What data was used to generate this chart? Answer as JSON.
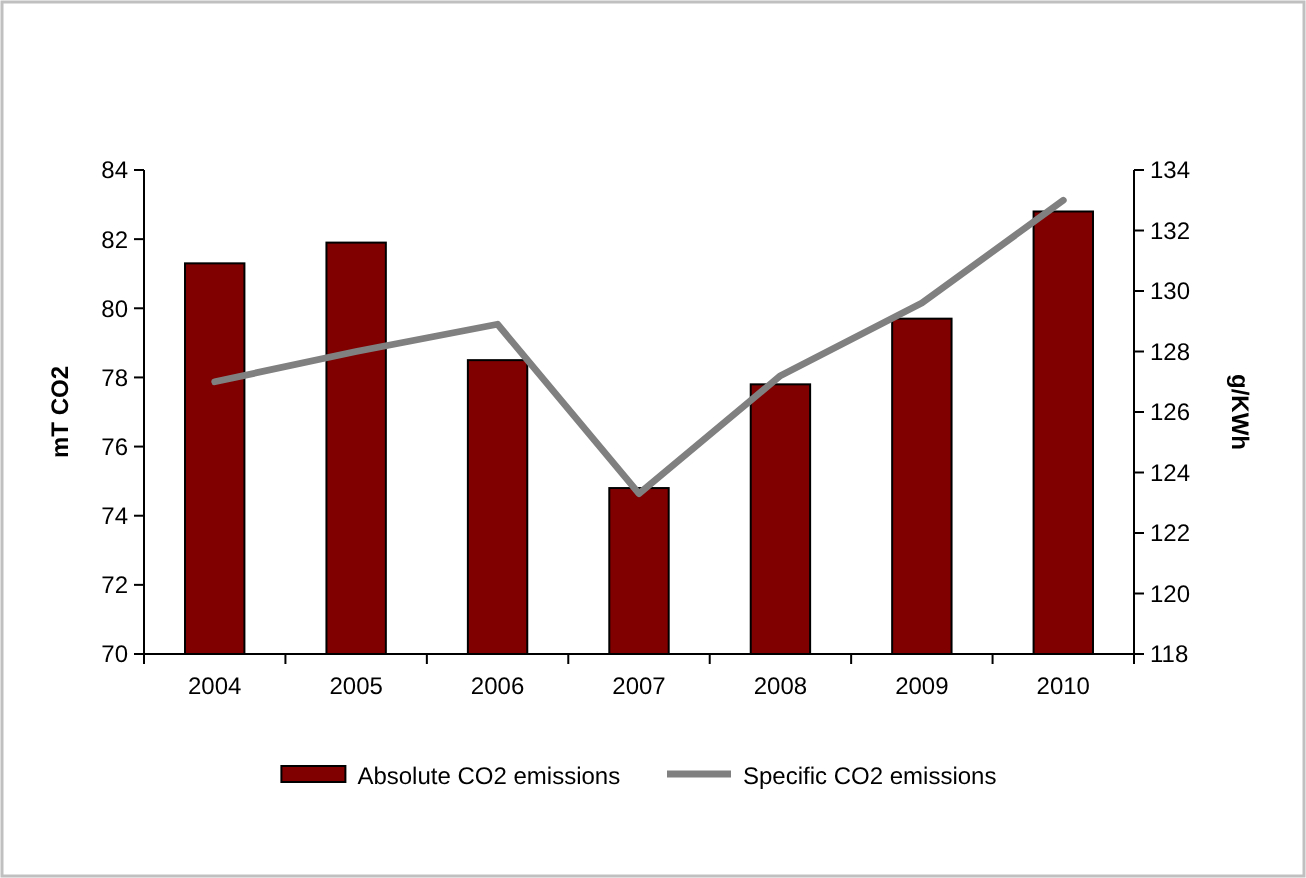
{
  "chart_data": {
    "type": "bar",
    "categories": [
      "2004",
      "2005",
      "2006",
      "2007",
      "2008",
      "2009",
      "2010"
    ],
    "series": [
      {
        "name": "Absolute CO2 emissions",
        "color": "#800000",
        "values": [
          81.3,
          81.9,
          78.5,
          74.8,
          77.8,
          79.7,
          82.8
        ]
      },
      {
        "name": "Specific CO2 emissions",
        "type": "line",
        "axis": "y2",
        "color": "#808080",
        "values": [
          127.0,
          128.0,
          128.9,
          123.3,
          127.2,
          129.6,
          133.0
        ]
      }
    ],
    "ylabel": "mT CO2",
    "y2label": "g/KWh",
    "ylim": [
      70,
      84
    ],
    "yticks": [
      70,
      72,
      74,
      76,
      78,
      80,
      82,
      84
    ],
    "y2lim": [
      118,
      134
    ],
    "y2ticks": [
      118,
      120,
      122,
      124,
      126,
      128,
      130,
      132,
      134
    ],
    "legend": "bottom"
  }
}
